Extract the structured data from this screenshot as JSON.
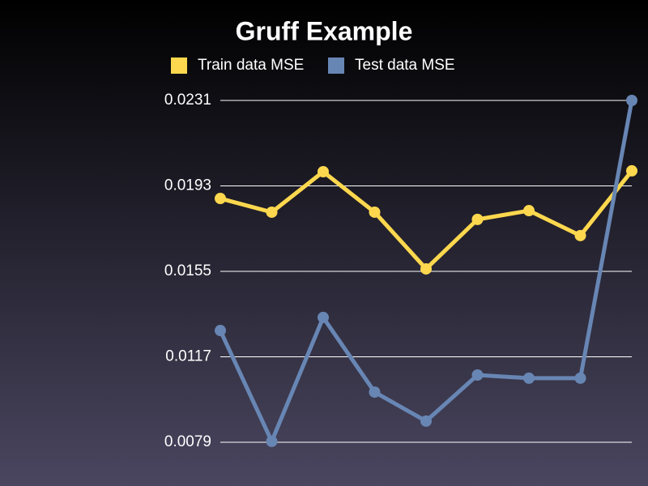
{
  "chart_data": {
    "type": "line",
    "title": "Gruff Example",
    "categories": [
      null,
      null,
      null,
      null,
      null,
      null,
      null,
      null,
      null
    ],
    "series": [
      {
        "name": "Train data MSE",
        "color": "#fdd84e",
        "values": [
          0.01874,
          0.01813,
          0.01993,
          0.01813,
          0.01561,
          0.01781,
          0.0182,
          0.01709,
          0.01997
        ]
      },
      {
        "name": "Test data MSE",
        "color": "#6886b4",
        "values": [
          0.01287,
          0.00794,
          0.01345,
          0.01013,
          0.00884,
          0.01089,
          0.01075,
          0.01075,
          0.0231
        ]
      }
    ],
    "ylim": [
      0.0079,
      0.0231
    ],
    "yticks": [
      0.0079,
      0.0117,
      0.0155,
      0.0193,
      0.0231
    ],
    "grid": true
  }
}
